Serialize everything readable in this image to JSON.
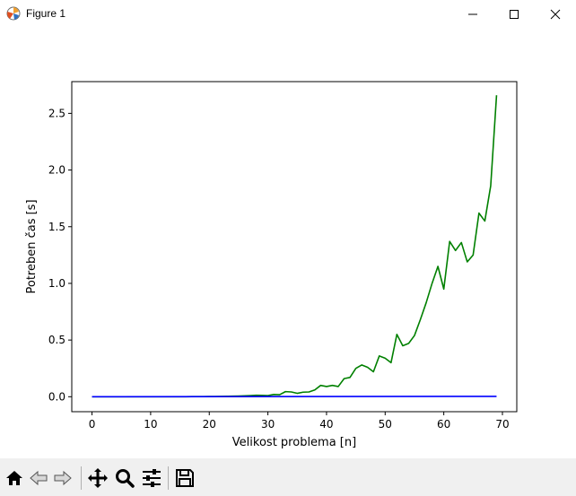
{
  "window": {
    "title": "Figure 1"
  },
  "toolbar": {
    "items": [
      "home-icon",
      "back-icon",
      "forward-icon",
      "pan-icon",
      "zoom-icon",
      "configure-subplots-icon",
      "save-icon"
    ]
  },
  "chart_data": {
    "type": "line",
    "title": "",
    "xlabel": "Velikost problema [n]",
    "ylabel": "Potreben čas [s]",
    "xlim": [
      -3.45,
      72.45
    ],
    "ylim": [
      -0.132,
      2.78
    ],
    "xticks": [
      0,
      10,
      20,
      30,
      40,
      50,
      60,
      70
    ],
    "yticks": [
      0.0,
      0.5,
      1.0,
      1.5,
      2.0,
      2.5
    ],
    "xtick_labels": [
      "0",
      "10",
      "20",
      "30",
      "40",
      "50",
      "60",
      "70"
    ],
    "ytick_labels": [
      "0.0",
      "0.5",
      "1.0",
      "1.5",
      "2.0",
      "2.5"
    ],
    "grid": false,
    "series": [
      {
        "color": "#008000",
        "x": [
          0,
          1,
          2,
          3,
          4,
          5,
          6,
          7,
          8,
          9,
          10,
          11,
          12,
          13,
          14,
          15,
          16,
          17,
          18,
          19,
          20,
          21,
          22,
          23,
          24,
          25,
          26,
          27,
          28,
          29,
          30,
          31,
          32,
          33,
          34,
          35,
          36,
          37,
          38,
          39,
          40,
          41,
          42,
          43,
          44,
          45,
          46,
          47,
          48,
          49,
          50,
          51,
          52,
          53,
          54,
          55,
          56,
          57,
          58,
          59,
          60,
          61,
          62,
          63,
          64,
          65,
          66,
          67,
          68,
          69
        ],
        "values": [
          0,
          0,
          0,
          0,
          0,
          0,
          0,
          0,
          0,
          0,
          0,
          0,
          0,
          0,
          0,
          0,
          0,
          0.001,
          0.001,
          0.001,
          0.002,
          0.002,
          0.003,
          0.004,
          0.005,
          0.006,
          0.008,
          0.01,
          0.013,
          0.012,
          0.01,
          0.02,
          0.018,
          0.045,
          0.042,
          0.03,
          0.04,
          0.042,
          0.06,
          0.1,
          0.09,
          0.1,
          0.09,
          0.16,
          0.17,
          0.25,
          0.28,
          0.26,
          0.22,
          0.36,
          0.34,
          0.3,
          0.55,
          0.45,
          0.47,
          0.54,
          0.68,
          0.83,
          1.0,
          1.15,
          0.95,
          1.37,
          1.29,
          1.36,
          1.19,
          1.25,
          1.62,
          1.55,
          1.86,
          2.66
        ]
      },
      {
        "color": "#0000ff",
        "x": [
          0,
          69
        ],
        "values": [
          0,
          0.003
        ]
      }
    ]
  }
}
